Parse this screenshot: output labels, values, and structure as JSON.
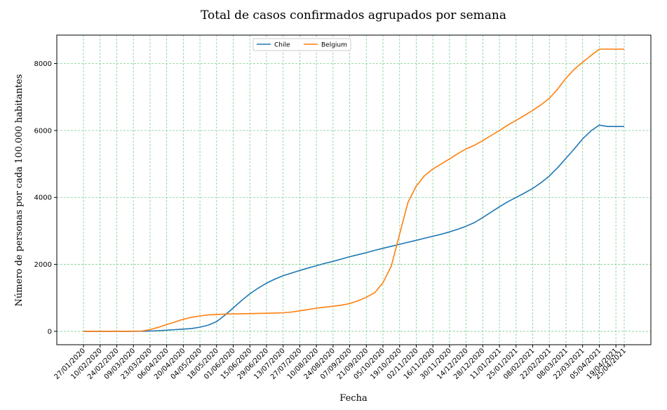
{
  "chart_data": {
    "type": "line",
    "title": "Total de casos confirmados agrupados por semana",
    "xlabel": "Fecha",
    "ylabel": "Número de personas por cada 100.000 habitantes",
    "ylim": [
      -400,
      8850
    ],
    "yticks": [
      0,
      2000,
      4000,
      6000,
      8000
    ],
    "grid": true,
    "grid_color": "#7fcf8f",
    "legend_position": "top-center",
    "x": [
      "27/01/2020",
      "03/02/2020",
      "10/02/2020",
      "17/02/2020",
      "24/02/2020",
      "02/03/2020",
      "09/03/2020",
      "16/03/2020",
      "23/03/2020",
      "30/03/2020",
      "06/04/2020",
      "13/04/2020",
      "20/04/2020",
      "27/04/2020",
      "04/05/2020",
      "11/05/2020",
      "18/05/2020",
      "25/05/2020",
      "01/06/2020",
      "08/06/2020",
      "15/06/2020",
      "22/06/2020",
      "29/06/2020",
      "06/07/2020",
      "13/07/2020",
      "20/07/2020",
      "27/07/2020",
      "03/08/2020",
      "10/08/2020",
      "17/08/2020",
      "24/08/2020",
      "31/08/2020",
      "07/09/2020",
      "14/09/2020",
      "21/09/2020",
      "28/09/2020",
      "05/10/2020",
      "12/10/2020",
      "19/10/2020",
      "26/10/2020",
      "02/11/2020",
      "09/11/2020",
      "16/11/2020",
      "23/11/2020",
      "30/11/2020",
      "07/12/2020",
      "14/12/2020",
      "21/12/2020",
      "28/12/2020",
      "04/01/2021",
      "11/01/2021",
      "18/01/2021",
      "25/01/2021",
      "01/02/2021",
      "08/02/2021",
      "15/02/2021",
      "22/02/2021",
      "01/03/2021",
      "08/03/2021",
      "15/03/2021",
      "22/03/2021",
      "29/03/2021",
      "05/04/2021",
      "12/04/2021",
      "19/04/2021",
      "25/04/2021"
    ],
    "x_tick_labels": [
      "27/01/2020",
      "10/02/2020",
      "24/02/2020",
      "09/03/2020",
      "23/03/2020",
      "06/04/2020",
      "20/04/2020",
      "04/05/2020",
      "18/05/2020",
      "01/06/2020",
      "15/06/2020",
      "29/06/2020",
      "13/07/2020",
      "27/07/2020",
      "10/08/2020",
      "24/08/2020",
      "07/09/2020",
      "21/09/2020",
      "05/10/2020",
      "19/10/2020",
      "02/11/2020",
      "16/11/2020",
      "30/11/2020",
      "14/12/2020",
      "28/12/2020",
      "11/01/2021",
      "25/01/2021",
      "08/02/2021",
      "22/02/2021",
      "08/03/2021",
      "22/03/2021",
      "05/04/2021",
      "19/04/2021",
      "25/04/2021"
    ],
    "series": [
      {
        "name": "Chile",
        "color": "#1f77b4",
        "values": [
          0,
          0,
          0,
          0,
          0,
          0,
          1,
          3,
          8,
          20,
          35,
          50,
          65,
          85,
          125,
          185,
          290,
          480,
          700,
          920,
          1120,
          1290,
          1440,
          1560,
          1660,
          1740,
          1820,
          1890,
          1960,
          2030,
          2090,
          2160,
          2230,
          2290,
          2350,
          2420,
          2480,
          2540,
          2600,
          2660,
          2720,
          2780,
          2840,
          2900,
          2970,
          3050,
          3140,
          3250,
          3400,
          3560,
          3720,
          3870,
          4000,
          4130,
          4270,
          4440,
          4640,
          4890,
          5170,
          5450,
          5750,
          5990,
          6160,
          6120,
          6120,
          6120
        ]
      },
      {
        "name": "Belgium",
        "color": "#ff7f0e",
        "values": [
          0,
          0,
          0,
          0,
          0,
          0,
          2,
          10,
          50,
          120,
          200,
          280,
          360,
          420,
          460,
          490,
          505,
          515,
          520,
          525,
          530,
          535,
          540,
          545,
          555,
          575,
          610,
          650,
          690,
          720,
          750,
          780,
          830,
          910,
          1020,
          1150,
          1450,
          1950,
          2900,
          3850,
          4340,
          4650,
          4850,
          5000,
          5150,
          5310,
          5450,
          5560,
          5700,
          5850,
          6000,
          6160,
          6300,
          6450,
          6600,
          6770,
          6960,
          7240,
          7560,
          7830,
          8040,
          8240,
          8430,
          8430,
          8430,
          8430
        ]
      }
    ]
  }
}
